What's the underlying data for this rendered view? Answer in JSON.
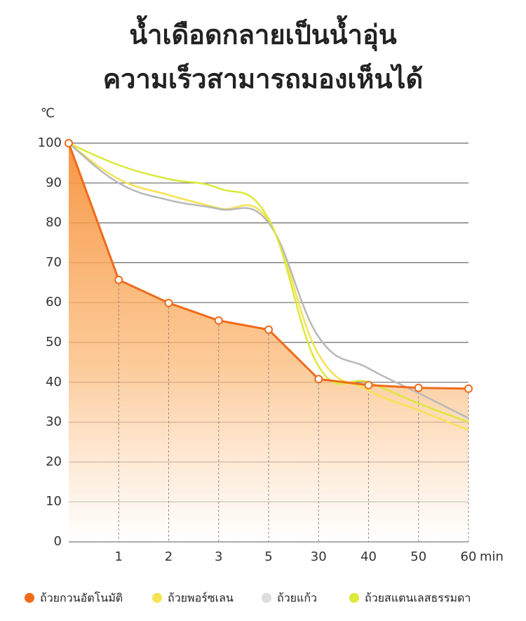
{
  "chart_data": {
    "type": "line",
    "title": [
      "น้ำเดือดกลายเป็นน้ำอุ่น",
      "ความเร็วสามารถมองเห็นได้"
    ],
    "y_label": "℃",
    "x_unit": "min",
    "categories": [
      null,
      "1",
      "2",
      "3",
      "5",
      "30",
      "40",
      "50",
      "60"
    ],
    "ylim": [
      0,
      100
    ],
    "yticks": [
      0,
      10,
      20,
      30,
      40,
      50,
      60,
      70,
      80,
      90,
      100
    ],
    "grid": true,
    "series": [
      {
        "name": "ถ้วยกวนอัตโนมัติ",
        "color": "#ee6b1a",
        "values": [
          100,
          65.7,
          59.9,
          55.5,
          53.2,
          40.8,
          39.3,
          38.6,
          38.4
        ]
      },
      {
        "name": "ถ้วยพอร์ซเลน",
        "color": "#f5e254",
        "values": [
          100,
          91,
          87,
          83.7,
          80.5,
          47,
          38,
          33,
          28
        ]
      },
      {
        "name": "ถ้วยแก้ว",
        "color": "#b8b8b8",
        "values": [
          100,
          90,
          85.7,
          83.5,
          80,
          51.4,
          43.5,
          37.3,
          31
        ]
      },
      {
        "name": "ถ้วยสแตนเลสธรรมดา",
        "color": "#dbe93a",
        "values": [
          100,
          94.5,
          91,
          88.7,
          81,
          44,
          40,
          34.7,
          30
        ]
      }
    ]
  }
}
